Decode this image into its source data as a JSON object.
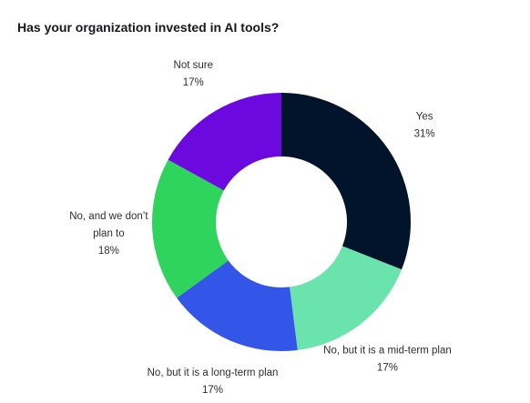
{
  "chart_data": {
    "type": "pie",
    "title": "Has your organization invested in AI tools?",
    "donut": true,
    "categories": [
      "Yes",
      "No, but it is a mid-term plan",
      "No, but it is a long-term plan",
      "No, and we don’t plan to",
      "Not sure"
    ],
    "values": [
      31,
      17,
      17,
      18,
      17
    ],
    "value_labels": [
      "31%",
      "17%",
      "17%",
      "18%",
      "17%"
    ],
    "label_lines": [
      [
        "Yes"
      ],
      [
        "No, but it is a mid-term plan"
      ],
      [
        "No, but it is a long-term plan"
      ],
      [
        "No, and we don’t",
        "plan to"
      ],
      [
        "Not sure"
      ]
    ],
    "colors": [
      "#02142b",
      "#6ae4ac",
      "#3355e8",
      "#2fd45c",
      "#6b09df"
    ],
    "legend": "none"
  }
}
